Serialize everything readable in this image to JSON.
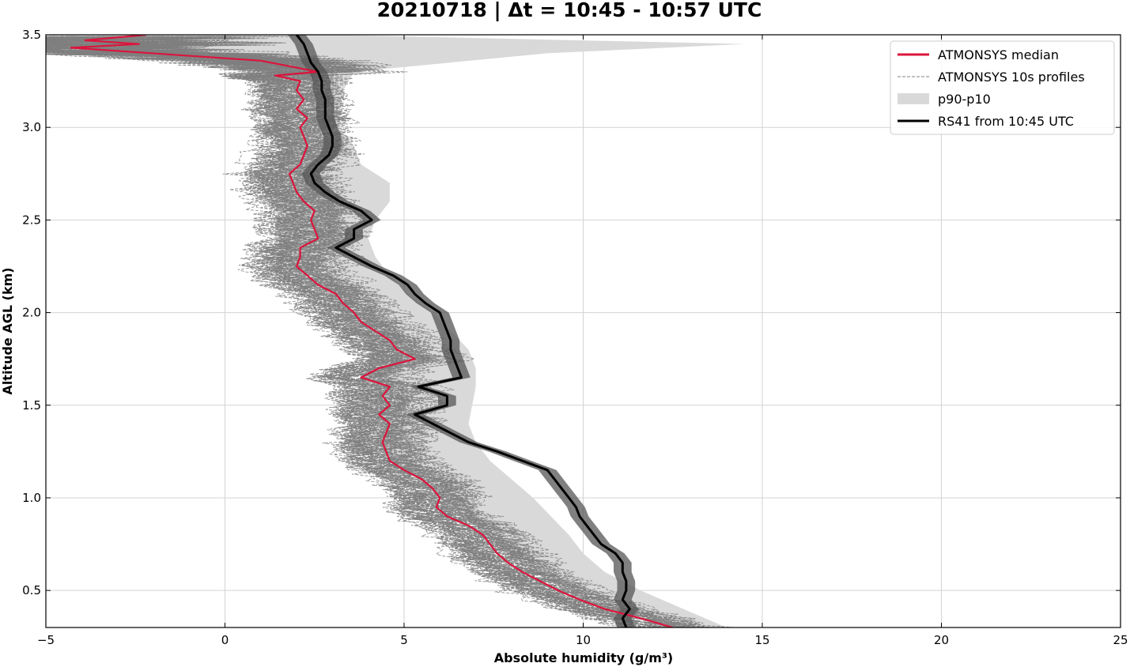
{
  "chart_data": {
    "type": "line",
    "title": "20210718 | Δt = 10:45 - 10:57 UTC",
    "xlabel": "Absolute humidity (g/m³)",
    "ylabel": "Altitude AGL (km)",
    "xlim": [
      -5,
      25
    ],
    "ylim": [
      0.3,
      3.5
    ],
    "xticks": [
      -5,
      0,
      5,
      10,
      15,
      20,
      25
    ],
    "xtick_labels": [
      "−5",
      "0",
      "5",
      "10",
      "15",
      "20",
      "25"
    ],
    "yticks": [
      0.5,
      1.0,
      1.5,
      2.0,
      2.5,
      3.0,
      3.5
    ],
    "ytick_labels": [
      "0.5",
      "1.0",
      "1.5",
      "2.0",
      "2.5",
      "3.0",
      "3.5"
    ],
    "grid": true,
    "legend_position": "top-right",
    "legend": [
      {
        "label": "ATMONSYS median",
        "style": "solid",
        "color": "#dc143c"
      },
      {
        "label": "ATMONSYS 10s profiles",
        "style": "dashed",
        "color": "#808080"
      },
      {
        "label": "p90-p10",
        "style": "fill",
        "color": "#d9d9d9"
      },
      {
        "label": "RS41 from 10:45 UTC",
        "style": "solid",
        "color": "#000000"
      }
    ],
    "series": [
      {
        "name": "ATMONSYS median",
        "color": "#dc143c",
        "points": [
          [
            12.5,
            0.3
          ],
          [
            11.6,
            0.35
          ],
          [
            10.6,
            0.4
          ],
          [
            9.9,
            0.45
          ],
          [
            9.3,
            0.5
          ],
          [
            8.8,
            0.55
          ],
          [
            8.3,
            0.6
          ],
          [
            7.9,
            0.65
          ],
          [
            7.6,
            0.7
          ],
          [
            7.4,
            0.75
          ],
          [
            7.2,
            0.8
          ],
          [
            6.8,
            0.85
          ],
          [
            6.2,
            0.9
          ],
          [
            5.9,
            0.95
          ],
          [
            6.0,
            1.0
          ],
          [
            5.8,
            1.05
          ],
          [
            5.5,
            1.1
          ],
          [
            5.0,
            1.15
          ],
          [
            4.6,
            1.2
          ],
          [
            4.5,
            1.25
          ],
          [
            4.4,
            1.3
          ],
          [
            4.5,
            1.35
          ],
          [
            4.6,
            1.4
          ],
          [
            4.3,
            1.45
          ],
          [
            4.6,
            1.5
          ],
          [
            4.4,
            1.55
          ],
          [
            4.6,
            1.6
          ],
          [
            3.8,
            1.65
          ],
          [
            4.3,
            1.7
          ],
          [
            5.3,
            1.75
          ],
          [
            4.8,
            1.8
          ],
          [
            4.6,
            1.85
          ],
          [
            4.2,
            1.9
          ],
          [
            3.8,
            1.95
          ],
          [
            3.6,
            2.0
          ],
          [
            3.3,
            2.05
          ],
          [
            3.1,
            2.1
          ],
          [
            2.6,
            2.15
          ],
          [
            2.3,
            2.2
          ],
          [
            2.0,
            2.25
          ],
          [
            2.1,
            2.3
          ],
          [
            2.1,
            2.35
          ],
          [
            2.6,
            2.4
          ],
          [
            2.5,
            2.45
          ],
          [
            2.4,
            2.5
          ],
          [
            2.5,
            2.55
          ],
          [
            2.2,
            2.6
          ],
          [
            2.0,
            2.65
          ],
          [
            1.9,
            2.7
          ],
          [
            1.8,
            2.75
          ],
          [
            2.1,
            2.8
          ],
          [
            2.2,
            2.85
          ],
          [
            2.3,
            2.9
          ],
          [
            2.2,
            2.95
          ],
          [
            2.1,
            3.0
          ],
          [
            2.3,
            3.05
          ],
          [
            2.0,
            3.1
          ],
          [
            2.2,
            3.15
          ],
          [
            2.0,
            3.2
          ],
          [
            2.1,
            3.25
          ],
          [
            1.4,
            3.28
          ],
          [
            2.6,
            3.3
          ],
          [
            1.8,
            3.33
          ],
          [
            1.0,
            3.36
          ],
          [
            -4.3,
            3.43
          ],
          [
            -2.4,
            3.45
          ],
          [
            -3.9,
            3.47
          ],
          [
            -2.2,
            3.5
          ]
        ]
      },
      {
        "name": "RS41 from 10:45 UTC",
        "color": "#000000",
        "points": [
          [
            11.2,
            0.3
          ],
          [
            11.1,
            0.35
          ],
          [
            11.3,
            0.4
          ],
          [
            11.1,
            0.45
          ],
          [
            11.2,
            0.5
          ],
          [
            11.2,
            0.55
          ],
          [
            11.1,
            0.6
          ],
          [
            11.1,
            0.65
          ],
          [
            10.9,
            0.7
          ],
          [
            10.5,
            0.75
          ],
          [
            10.3,
            0.8
          ],
          [
            10.1,
            0.85
          ],
          [
            9.9,
            0.9
          ],
          [
            9.8,
            0.95
          ],
          [
            9.6,
            1.0
          ],
          [
            9.4,
            1.05
          ],
          [
            9.2,
            1.1
          ],
          [
            9.0,
            1.15
          ],
          [
            8.3,
            1.2
          ],
          [
            7.6,
            1.25
          ],
          [
            6.8,
            1.3
          ],
          [
            6.3,
            1.35
          ],
          [
            5.8,
            1.4
          ],
          [
            5.3,
            1.45
          ],
          [
            6.2,
            1.5
          ],
          [
            6.2,
            1.55
          ],
          [
            5.4,
            1.6
          ],
          [
            6.6,
            1.65
          ],
          [
            6.5,
            1.7
          ],
          [
            6.4,
            1.75
          ],
          [
            6.3,
            1.8
          ],
          [
            6.3,
            1.85
          ],
          [
            6.2,
            1.9
          ],
          [
            6.1,
            1.95
          ],
          [
            6.0,
            2.0
          ],
          [
            5.6,
            2.05
          ],
          [
            5.3,
            2.1
          ],
          [
            5.1,
            2.15
          ],
          [
            4.7,
            2.2
          ],
          [
            4.1,
            2.25
          ],
          [
            3.6,
            2.3
          ],
          [
            3.1,
            2.35
          ],
          [
            3.6,
            2.4
          ],
          [
            3.6,
            2.45
          ],
          [
            4.1,
            2.5
          ],
          [
            3.8,
            2.55
          ],
          [
            3.2,
            2.6
          ],
          [
            2.8,
            2.65
          ],
          [
            2.5,
            2.7
          ],
          [
            2.4,
            2.75
          ],
          [
            2.6,
            2.8
          ],
          [
            2.9,
            2.85
          ],
          [
            3.0,
            2.9
          ],
          [
            3.0,
            2.95
          ],
          [
            2.9,
            3.0
          ],
          [
            2.8,
            3.05
          ],
          [
            2.8,
            3.1
          ],
          [
            2.8,
            3.15
          ],
          [
            2.7,
            3.2
          ],
          [
            2.7,
            3.25
          ],
          [
            2.6,
            3.3
          ],
          [
            2.4,
            3.35
          ],
          [
            2.3,
            3.4
          ],
          [
            2.2,
            3.45
          ],
          [
            2.0,
            3.5
          ]
        ]
      }
    ],
    "band": {
      "name": "p90-p10",
      "color": "#d9d9d9",
      "points": [
        [
          12.5,
          14.0,
          0.3
        ],
        [
          11.0,
          12.8,
          0.4
        ],
        [
          9.6,
          11.6,
          0.5
        ],
        [
          8.6,
          10.6,
          0.6
        ],
        [
          7.9,
          10.0,
          0.7
        ],
        [
          7.3,
          9.6,
          0.8
        ],
        [
          6.6,
          9.1,
          0.9
        ],
        [
          6.2,
          8.6,
          1.0
        ],
        [
          5.6,
          8.0,
          1.1
        ],
        [
          4.9,
          7.4,
          1.2
        ],
        [
          4.4,
          7.0,
          1.3
        ],
        [
          4.0,
          6.8,
          1.4
        ],
        [
          3.8,
          6.9,
          1.5
        ],
        [
          3.7,
          7.0,
          1.6
        ],
        [
          4.0,
          7.0,
          1.7
        ],
        [
          4.0,
          6.8,
          1.8
        ],
        [
          3.6,
          6.3,
          1.9
        ],
        [
          3.2,
          5.8,
          2.0
        ],
        [
          2.8,
          5.1,
          2.1
        ],
        [
          2.1,
          4.6,
          2.2
        ],
        [
          1.6,
          4.2,
          2.3
        ],
        [
          1.4,
          4.0,
          2.4
        ],
        [
          1.4,
          4.2,
          2.5
        ],
        [
          1.5,
          4.6,
          2.6
        ],
        [
          1.4,
          4.6,
          2.7
        ],
        [
          1.5,
          3.8,
          2.8
        ],
        [
          1.5,
          3.6,
          2.9
        ],
        [
          1.4,
          3.2,
          3.0
        ],
        [
          1.3,
          3.2,
          3.1
        ],
        [
          1.0,
          3.3,
          3.2
        ],
        [
          0.5,
          3.6,
          3.3
        ],
        [
          -1.0,
          9.0,
          3.4
        ],
        [
          -3.0,
          14.5,
          3.45
        ],
        [
          -5.0,
          3.0,
          3.5
        ]
      ]
    }
  }
}
